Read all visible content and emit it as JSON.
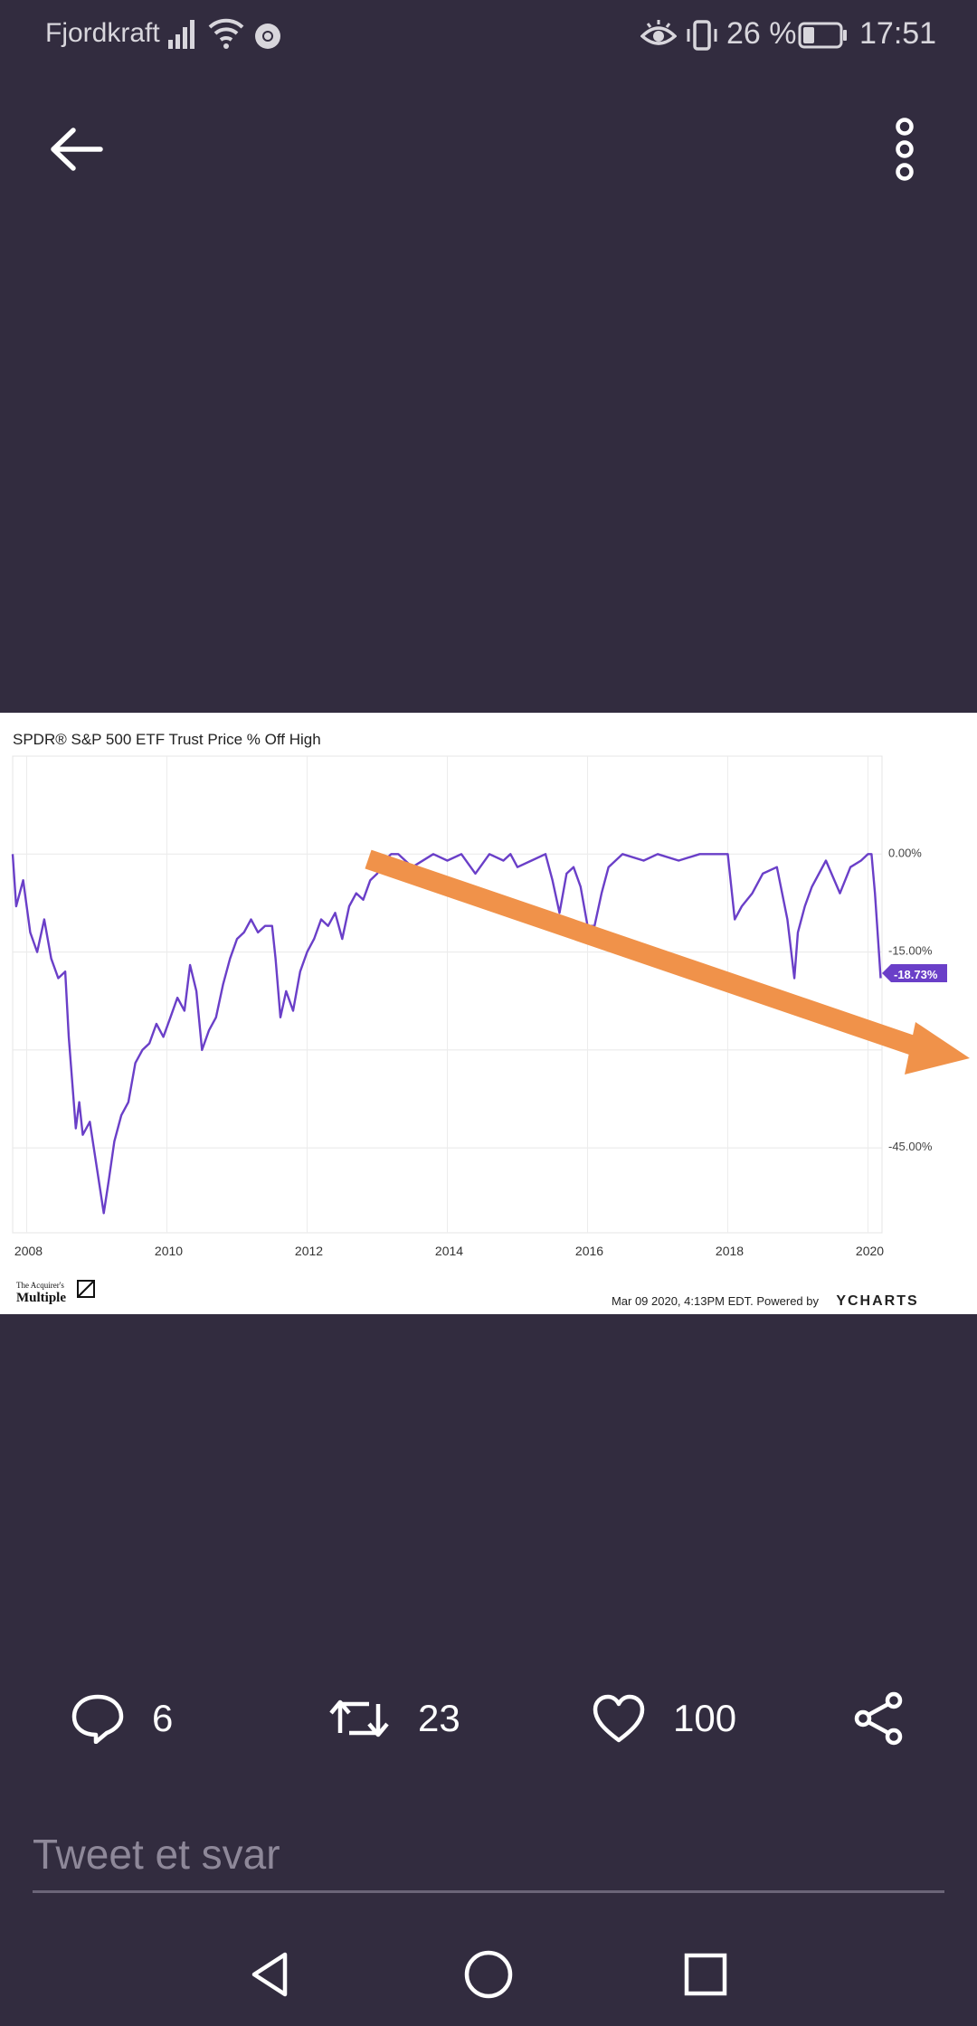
{
  "status_bar": {
    "carrier": "Fjordkraft",
    "battery": "26 %",
    "time": "17:51"
  },
  "app_bar": {
    "back_icon": "arrow-left-icon",
    "more_icon": "more-vertical-icon"
  },
  "chart_data": {
    "type": "line",
    "title": "SPDR® S&P 500 ETF Trust Price % Off High",
    "x_ticks": [
      "2008",
      "2010",
      "2012",
      "2014",
      "2016",
      "2018",
      "2020"
    ],
    "y_ticks": [
      "0.00%",
      "-15.00%",
      "-45.00%"
    ],
    "ylim": [
      -58,
      15
    ],
    "xlim": [
      2007.8,
      2020.2
    ],
    "current_value_label": "-18.73%",
    "series": [
      {
        "color": "#6a3fc8",
        "x": [
          2007.8,
          2007.85,
          2007.95,
          2008.05,
          2008.15,
          2008.25,
          2008.35,
          2008.45,
          2008.55,
          2008.6,
          2008.7,
          2008.75,
          2008.8,
          2008.9,
          2009.0,
          2009.1,
          2009.17,
          2009.25,
          2009.35,
          2009.45,
          2009.55,
          2009.65,
          2009.75,
          2009.85,
          2009.95,
          2010.05,
          2010.15,
          2010.25,
          2010.33,
          2010.42,
          2010.5,
          2010.6,
          2010.7,
          2010.8,
          2010.9,
          2011.0,
          2011.1,
          2011.2,
          2011.3,
          2011.4,
          2011.5,
          2011.55,
          2011.62,
          2011.7,
          2011.8,
          2011.9,
          2012.0,
          2012.1,
          2012.2,
          2012.3,
          2012.4,
          2012.5,
          2012.6,
          2012.7,
          2012.8,
          2012.9,
          2013.0,
          2013.1,
          2013.2,
          2013.3,
          2013.5,
          2013.8,
          2014.0,
          2014.2,
          2014.4,
          2014.6,
          2014.8,
          2014.9,
          2015.0,
          2015.2,
          2015.4,
          2015.5,
          2015.6,
          2015.7,
          2015.8,
          2015.9,
          2016.0,
          2016.1,
          2016.2,
          2016.3,
          2016.5,
          2016.8,
          2017.0,
          2017.3,
          2017.6,
          2017.9,
          2018.0,
          2018.1,
          2018.2,
          2018.35,
          2018.5,
          2018.7,
          2018.85,
          2018.95,
          2019.0,
          2019.1,
          2019.2,
          2019.4,
          2019.6,
          2019.75,
          2019.9,
          2020.0,
          2020.05,
          2020.1,
          2020.15,
          2020.18
        ],
        "y": [
          0,
          -8,
          -4,
          -12,
          -15,
          -10,
          -16,
          -19,
          -18,
          -28,
          -42,
          -38,
          -43,
          -41,
          -48,
          -55,
          -50,
          -44,
          -40,
          -38,
          -32,
          -30,
          -29,
          -26,
          -28,
          -25,
          -22,
          -24,
          -17,
          -21,
          -30,
          -27,
          -25,
          -20,
          -16,
          -13,
          -12,
          -10,
          -12,
          -11,
          -11,
          -16,
          -25,
          -21,
          -24,
          -18,
          -15,
          -13,
          -10,
          -11,
          -9,
          -13,
          -8,
          -6,
          -7,
          -4,
          -3,
          -1,
          0,
          0,
          -2,
          0,
          -1,
          0,
          -3,
          0,
          -1,
          0,
          -2,
          -1,
          0,
          -4,
          -9,
          -3,
          -2,
          -5,
          -11,
          -11,
          -6,
          -2,
          0,
          -1,
          0,
          -1,
          0,
          0,
          0,
          -10,
          -8,
          -6,
          -3,
          -2,
          -10,
          -19,
          -12,
          -8,
          -5,
          -1,
          -6,
          -2,
          -1,
          0,
          0,
          -6,
          -14,
          -19
        ]
      }
    ],
    "annotation": "orange arrow trending down from 2013 toward right edge"
  },
  "footer": {
    "brand_top": "The Acquirer's",
    "brand_bottom": "Multiple",
    "source_text": "Mar 09 2020, 4:13PM EDT. Powered by",
    "ycharts": "YCHARTS"
  },
  "actions": {
    "reply_count": "6",
    "retweet_count": "23",
    "like_count": "100"
  },
  "reply": {
    "placeholder": "Tweet et svar"
  }
}
